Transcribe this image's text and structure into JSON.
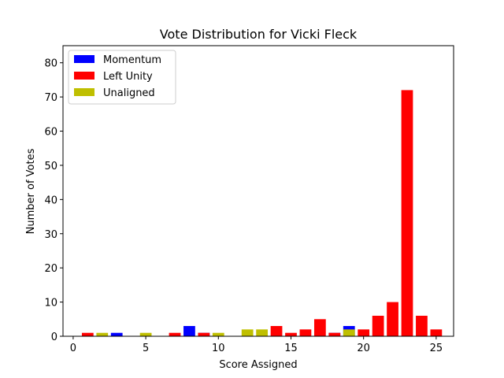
{
  "chart_data": {
    "type": "bar",
    "stacked": true,
    "title": "Vote Distribution for Vicki Fleck",
    "xlabel": "Score Assigned",
    "ylabel": "Number of Votes",
    "xlim": [
      -0.7,
      26.2
    ],
    "ylim": [
      0,
      85
    ],
    "xticks": [
      0,
      5,
      10,
      15,
      20,
      25
    ],
    "yticks": [
      0,
      10,
      20,
      30,
      40,
      50,
      60,
      70,
      80
    ],
    "grid": false,
    "legend_position": "top-left",
    "x": [
      1,
      2,
      3,
      5,
      7,
      8,
      9,
      10,
      12,
      13,
      14,
      15,
      16,
      17,
      18,
      19,
      20,
      21,
      22,
      23,
      24,
      25
    ],
    "series": [
      {
        "name": "Momentum",
        "color": "#0000ff",
        "values": [
          0,
          0,
          1,
          0,
          0,
          3,
          1,
          0,
          0,
          0,
          0,
          0,
          0,
          0,
          1,
          3,
          0,
          0,
          0,
          0,
          0,
          0
        ]
      },
      {
        "name": "Left Unity",
        "color": "#ff0000",
        "values": [
          1,
          0,
          0,
          0,
          1,
          0,
          1,
          0,
          0,
          0,
          3,
          1,
          2,
          5,
          1,
          0,
          2,
          6,
          10,
          72,
          6,
          2
        ]
      },
      {
        "name": "Unaligned",
        "color": "#bfbf00",
        "values": [
          0,
          1,
          0,
          1,
          0,
          0,
          0,
          1,
          2,
          2,
          0,
          0,
          0,
          0,
          0,
          2,
          0,
          0,
          0,
          0,
          0,
          0
        ]
      }
    ]
  }
}
